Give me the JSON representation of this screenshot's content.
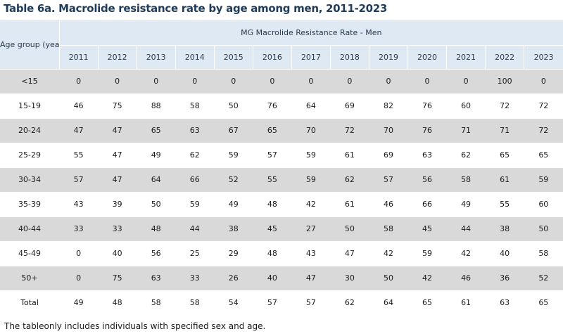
{
  "title": "Table 6a. Macrolide resistance rate by age among men, 2011-2023",
  "table": {
    "age_header": "Age group (years)",
    "main_header": "MG Macrolide Resistance Rate - Men",
    "years": [
      "2011",
      "2012",
      "2013",
      "2014",
      "2015",
      "2016",
      "2017",
      "2018",
      "2019",
      "2020",
      "2021",
      "2022",
      "2023"
    ],
    "rows": [
      {
        "age": "<15",
        "values": [
          "0",
          "0",
          "0",
          "0",
          "0",
          "0",
          "0",
          "0",
          "0",
          "0",
          "0",
          "100",
          "0"
        ]
      },
      {
        "age": "15-19",
        "values": [
          "46",
          "75",
          "88",
          "58",
          "50",
          "76",
          "64",
          "69",
          "82",
          "76",
          "60",
          "72",
          "72"
        ]
      },
      {
        "age": "20-24",
        "values": [
          "47",
          "47",
          "65",
          "63",
          "67",
          "65",
          "70",
          "72",
          "70",
          "76",
          "71",
          "71",
          "72"
        ]
      },
      {
        "age": "25-29",
        "values": [
          "55",
          "47",
          "49",
          "62",
          "59",
          "57",
          "59",
          "61",
          "69",
          "63",
          "62",
          "65",
          "65"
        ]
      },
      {
        "age": "30-34",
        "values": [
          "57",
          "47",
          "64",
          "66",
          "52",
          "55",
          "59",
          "62",
          "57",
          "56",
          "58",
          "61",
          "59"
        ]
      },
      {
        "age": "35-39",
        "values": [
          "43",
          "39",
          "50",
          "59",
          "49",
          "48",
          "42",
          "61",
          "46",
          "66",
          "49",
          "55",
          "60"
        ]
      },
      {
        "age": "40-44",
        "values": [
          "33",
          "33",
          "48",
          "44",
          "38",
          "45",
          "27",
          "50",
          "58",
          "45",
          "44",
          "38",
          "50"
        ]
      },
      {
        "age": "45-49",
        "values": [
          "0",
          "40",
          "56",
          "25",
          "29",
          "48",
          "43",
          "47",
          "42",
          "59",
          "42",
          "40",
          "58"
        ]
      },
      {
        "age": "50+",
        "values": [
          "0",
          "75",
          "63",
          "33",
          "26",
          "40",
          "47",
          "30",
          "50",
          "42",
          "46",
          "36",
          "52"
        ]
      },
      {
        "age": "Total",
        "values": [
          "49",
          "48",
          "58",
          "58",
          "54",
          "57",
          "57",
          "62",
          "64",
          "65",
          "61",
          "63",
          "65"
        ]
      }
    ]
  },
  "colors": {
    "header_bg": "#dfe9f4",
    "shaded_row_bg": "#d9d9d9",
    "title_color": "#1f3d5a"
  },
  "footnote": "The tableonly includes individuals with specified sex and age."
}
